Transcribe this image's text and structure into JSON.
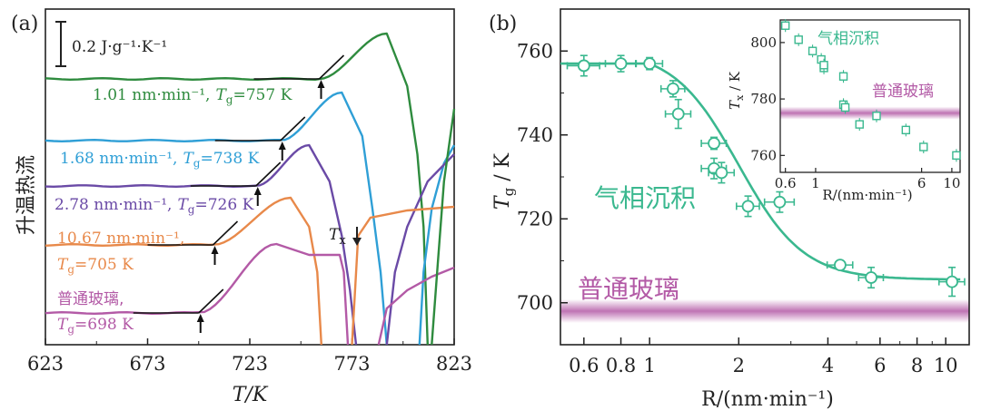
{
  "chart_data": [
    {
      "panel_label": "(a)",
      "type": "line",
      "xlabel": "T/K",
      "ylabel": "升温热流",
      "xlim": [
        623,
        823
      ],
      "xticks": [
        "623",
        "673",
        "723",
        "773",
        "823"
      ],
      "scale_bar": "0.2 J·g⁻¹·K⁻¹",
      "tx_label": "T",
      "tx_sub": "x",
      "series": [
        {
          "name": "1.01 nm·min⁻¹",
          "rate": "1.01 nm·min⁻¹,",
          "tg_label": "T",
          "tg_sub": "g",
          "tg_value": "=757 K",
          "color": "#2e8b3e",
          "tg": 757
        },
        {
          "name": "1.68 nm·min⁻¹",
          "rate": "1.68 nm·min⁻¹,",
          "tg_label": "T",
          "tg_sub": "g",
          "tg_value": "=738 K",
          "color": "#2f9fd6",
          "tg": 738
        },
        {
          "name": "2.78 nm·min⁻¹",
          "rate": "2.78 nm·min⁻¹,",
          "tg_label": "T",
          "tg_sub": "g",
          "tg_value": "=726 K",
          "color": "#6a4aa6",
          "tg": 726
        },
        {
          "name": "10.67 nm·min⁻¹",
          "rate": "10.67 nm·min⁻¹,",
          "tg_label": "T",
          "tg_sub": "g",
          "tg_value": "=705 K",
          "color": "#e8894a",
          "tg": 705
        },
        {
          "name": "普通玻璃",
          "rate": "普通玻璃,",
          "tg_label": "T",
          "tg_sub": "g",
          "tg_value": "=698 K",
          "color": "#b35aa6",
          "tg": 698
        }
      ]
    },
    {
      "panel_label": "(b)",
      "type": "scatter",
      "xscale": "log",
      "xlabel": "R/(nm·min⁻¹)",
      "ylabel": "Tg / K",
      "ylabel_main": "T",
      "ylabel_sub": "g",
      "ylabel_unit": " / K",
      "xlim": [
        0.5,
        12
      ],
      "ylim": [
        690,
        770
      ],
      "xticks": [
        {
          "v": 0.6,
          "l": "0.6"
        },
        {
          "v": 0.8,
          "l": "0.8"
        },
        {
          "v": 1,
          "l": "1"
        },
        {
          "v": 2,
          "l": "2"
        },
        {
          "v": 4,
          "l": "4"
        },
        {
          "v": 6,
          "l": "6"
        },
        {
          "v": 8,
          "l": "8"
        },
        {
          "v": 10,
          "l": "10"
        }
      ],
      "yticks": [
        {
          "v": 700,
          "l": "700"
        },
        {
          "v": 720,
          "l": "720"
        },
        {
          "v": 740,
          "l": "740"
        },
        {
          "v": 760,
          "l": "760"
        }
      ],
      "points": [
        {
          "x": 0.6,
          "y": 756.5,
          "xerr": 0.05,
          "yerr": 2
        },
        {
          "x": 0.8,
          "y": 757,
          "xerr": 0.06,
          "yerr": 1.5
        },
        {
          "x": 1.0,
          "y": 757,
          "xerr": 0.06,
          "yerr": 1
        },
        {
          "x": 1.2,
          "y": 751,
          "xerr": 0.06,
          "yerr": 1.5
        },
        {
          "x": 1.25,
          "y": 745,
          "xerr": 0.07,
          "yerr": 3
        },
        {
          "x": 1.65,
          "y": 738,
          "xerr": 0.09,
          "yerr": 1
        },
        {
          "x": 1.65,
          "y": 732,
          "xerr": 0.09,
          "yerr": 2
        },
        {
          "x": 1.75,
          "y": 731,
          "xerr": 0.1,
          "yerr": 2
        },
        {
          "x": 2.15,
          "y": 723,
          "xerr": 0.1,
          "yerr": 2
        },
        {
          "x": 2.75,
          "y": 724,
          "xerr": 0.2,
          "yerr": 2
        },
        {
          "x": 4.4,
          "y": 709,
          "xerr": 0.25,
          "yerr": 0.5
        },
        {
          "x": 5.6,
          "y": 706,
          "xerr": 0.3,
          "yerr": 2
        },
        {
          "x": 10.5,
          "y": 705,
          "xerr": 0.6,
          "yerr": 3
        }
      ],
      "fit_curve": {
        "high": 757,
        "low": 705.5,
        "knee": 1.0,
        "center_log": 0.3,
        "width_log": 0.22
      },
      "band_label": "普通玻璃",
      "band_y": 698,
      "vapor_label": "气相沉积",
      "color_vapor": "#3ab88f",
      "color_band": "#b35aa6",
      "inset": {
        "xlabel": "R/(nm·min⁻¹)",
        "ylabel_main": "T",
        "ylabel_sub": "x",
        "ylabel_unit": " / K",
        "xlim": [
          0.55,
          11.5
        ],
        "ylim": [
          754,
          808
        ],
        "xticks": [
          {
            "v": 0.6,
            "l": "0.6"
          },
          {
            "v": 1,
            "l": "1"
          },
          {
            "v": 6,
            "l": "6"
          },
          {
            "v": 10,
            "l": "10"
          }
        ],
        "yticks": [
          {
            "v": 760,
            "l": "760"
          },
          {
            "v": 780,
            "l": "780"
          },
          {
            "v": 800,
            "l": "800"
          }
        ],
        "points": [
          {
            "x": 0.6,
            "y": 806
          },
          {
            "x": 0.75,
            "y": 801
          },
          {
            "x": 0.95,
            "y": 797
          },
          {
            "x": 1.1,
            "y": 794
          },
          {
            "x": 1.15,
            "y": 791
          },
          {
            "x": 1.15,
            "y": 792
          },
          {
            "x": 1.6,
            "y": 788
          },
          {
            "x": 1.6,
            "y": 778
          },
          {
            "x": 1.65,
            "y": 777
          },
          {
            "x": 2.1,
            "y": 771
          },
          {
            "x": 2.8,
            "y": 774
          },
          {
            "x": 4.6,
            "y": 769
          },
          {
            "x": 6.2,
            "y": 763
          },
          {
            "x": 10.8,
            "y": 760
          }
        ],
        "band_y": 775,
        "band_label": "普通玻璃",
        "vapor_label": "气相沉积"
      }
    }
  ]
}
